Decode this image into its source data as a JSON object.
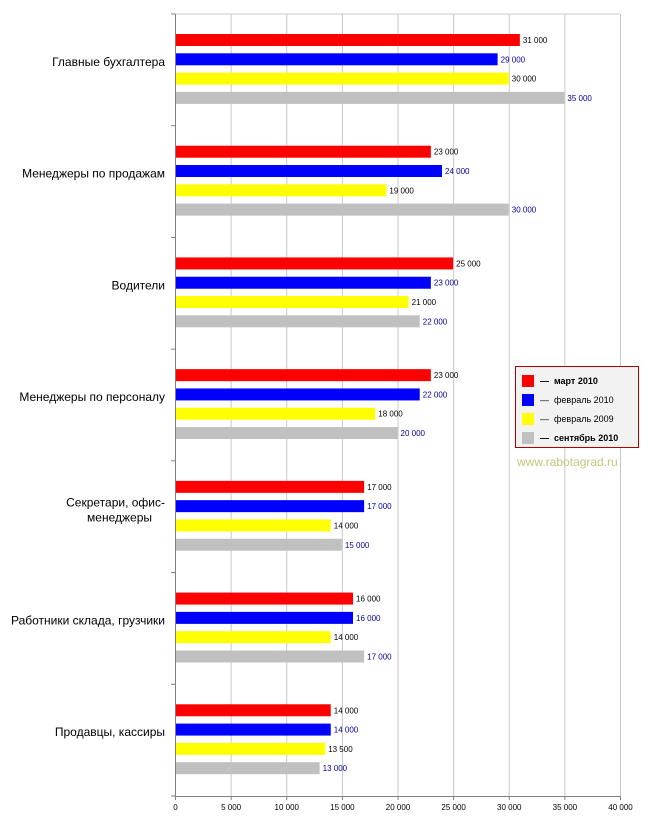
{
  "chart_data": {
    "type": "bar",
    "orientation": "horizontal",
    "categories": [
      "Главные бухгалтера",
      "Менеджеры по продажам",
      "Водители",
      "Менеджеры по персоналу",
      "Секретари, офис-менеджеры",
      "Работники склада, грузчики",
      "Продавцы, кассиры"
    ],
    "series": [
      {
        "name": "март 2010",
        "color": "#ff0000",
        "label_color": "#000000",
        "values": [
          31000,
          23000,
          25000,
          23000,
          17000,
          16000,
          14000
        ]
      },
      {
        "name": "февраль 2010",
        "color": "#0000ff",
        "label_color": "#000099",
        "values": [
          29000,
          24000,
          23000,
          22000,
          17000,
          16000,
          14000
        ]
      },
      {
        "name": "февраль 2009",
        "color": "#ffff00",
        "label_color": "#000000",
        "values": [
          30000,
          19000,
          21000,
          18000,
          14000,
          14000,
          13500
        ]
      },
      {
        "name": "сентябрь 2010",
        "color": "#c0c0c0",
        "label_color": "#000099",
        "values": [
          35000,
          30000,
          22000,
          20000,
          15000,
          17000,
          13000
        ]
      }
    ],
    "value_labels": [
      [
        "31 000",
        "29 000",
        "30 000",
        "35 000"
      ],
      [
        "23 000",
        "24 000",
        "19 000",
        "30 000"
      ],
      [
        "25 000",
        "23 000",
        "21 000",
        "22 000"
      ],
      [
        "23 000",
        "22 000",
        "18 000",
        "20 000"
      ],
      [
        "17 000",
        "17 000",
        "14 000",
        "15 000"
      ],
      [
        "16 000",
        "16 000",
        "14 000",
        "17 000"
      ],
      [
        "14 000",
        "14 000",
        "13 500",
        "13 000"
      ]
    ],
    "xlim": [
      0,
      40000
    ],
    "x_ticks": [
      0,
      5000,
      10000,
      15000,
      20000,
      25000,
      30000,
      35000,
      40000
    ],
    "x_tick_labels": [
      "0",
      "5 000",
      "10 000",
      "15 000",
      "20 000",
      "25 000",
      "30 000",
      "35 000",
      "40 000"
    ],
    "grid": true,
    "legend_position": "right"
  },
  "legend": {
    "items": [
      {
        "label": "март 2010",
        "color": "#ff0000",
        "bold": true
      },
      {
        "label": "февраль 2010",
        "color": "#0000ff",
        "bold": false
      },
      {
        "label": "февраль 2009",
        "color": "#ffff00",
        "bold": false
      },
      {
        "label": "сентябрь 2010",
        "color": "#c0c0c0",
        "bold": true
      }
    ],
    "dash": "—"
  },
  "watermark": "www.rabotagrad.ru"
}
